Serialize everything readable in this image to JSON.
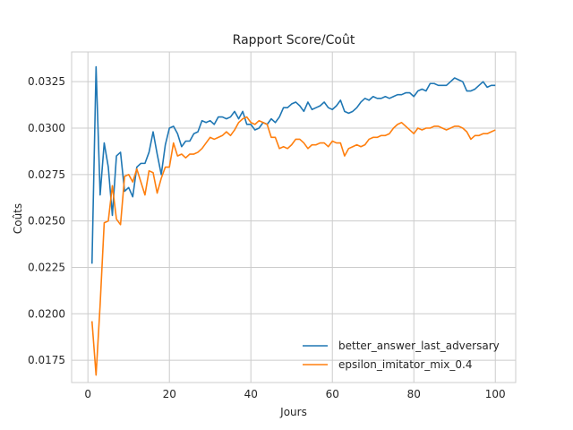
{
  "chart_data": {
    "type": "line",
    "title": "Rapport Score/Coût",
    "xlabel": "Jours",
    "ylabel": "Coûts",
    "xlim": [
      -4,
      105
    ],
    "ylim": [
      0.0163,
      0.0341
    ],
    "xticks": [
      0,
      20,
      40,
      60,
      80,
      100
    ],
    "yticks": [
      0.0175,
      0.02,
      0.0225,
      0.025,
      0.0275,
      0.03,
      0.0325
    ],
    "ytick_labels": [
      "0.0175",
      "0.0200",
      "0.0225",
      "0.0250",
      "0.0275",
      "0.0300",
      "0.0325"
    ],
    "grid": true,
    "legend_position": "lower-right",
    "x": [
      1,
      2,
      3,
      4,
      5,
      6,
      7,
      8,
      9,
      10,
      11,
      12,
      13,
      14,
      15,
      16,
      17,
      18,
      19,
      20,
      21,
      22,
      23,
      24,
      25,
      26,
      27,
      28,
      29,
      30,
      31,
      32,
      33,
      34,
      35,
      36,
      37,
      38,
      39,
      40,
      41,
      42,
      43,
      44,
      45,
      46,
      47,
      48,
      49,
      50,
      51,
      52,
      53,
      54,
      55,
      56,
      57,
      58,
      59,
      60,
      61,
      62,
      63,
      64,
      65,
      66,
      67,
      68,
      69,
      70,
      71,
      72,
      73,
      74,
      75,
      76,
      77,
      78,
      79,
      80,
      81,
      82,
      83,
      84,
      85,
      86,
      87,
      88,
      89,
      90,
      91,
      92,
      93,
      94,
      95,
      96,
      97,
      98,
      99,
      100
    ],
    "series": [
      {
        "name": "better_answer_last_adversary",
        "color": "#1f77b4",
        "values": [
          0.0227,
          0.0333,
          0.0264,
          0.0292,
          0.0279,
          0.0253,
          0.0285,
          0.0287,
          0.0266,
          0.0268,
          0.0263,
          0.0279,
          0.0281,
          0.0281,
          0.0287,
          0.0298,
          0.0286,
          0.0275,
          0.0291,
          0.03,
          0.0301,
          0.0297,
          0.029,
          0.0293,
          0.0293,
          0.0297,
          0.0298,
          0.0304,
          0.0303,
          0.0304,
          0.0302,
          0.0306,
          0.0306,
          0.0305,
          0.0306,
          0.0309,
          0.0305,
          0.0309,
          0.0302,
          0.0302,
          0.0299,
          0.03,
          0.0303,
          0.0302,
          0.0305,
          0.0303,
          0.0306,
          0.0311,
          0.0311,
          0.0313,
          0.0314,
          0.0312,
          0.0309,
          0.0314,
          0.031,
          0.0311,
          0.0312,
          0.0314,
          0.0311,
          0.031,
          0.0312,
          0.0315,
          0.0309,
          0.0308,
          0.0309,
          0.0311,
          0.0314,
          0.0316,
          0.0315,
          0.0317,
          0.0316,
          0.0316,
          0.0317,
          0.0316,
          0.0317,
          0.0318,
          0.0318,
          0.0319,
          0.0319,
          0.0317,
          0.032,
          0.0321,
          0.032,
          0.0324,
          0.0324,
          0.0323,
          0.0323,
          0.0323,
          0.0325,
          0.0327,
          0.0326,
          0.0325,
          0.032,
          0.032,
          0.0321,
          0.0323,
          0.0325,
          0.0322,
          0.0323,
          0.0323
        ]
      },
      {
        "name": "epsilon_imitator_mix_0.4",
        "color": "#ff7f0e",
        "values": [
          0.0196,
          0.0167,
          0.0205,
          0.0249,
          0.025,
          0.0269,
          0.0251,
          0.0248,
          0.0274,
          0.0275,
          0.0271,
          0.0278,
          0.0271,
          0.0264,
          0.0277,
          0.0276,
          0.0265,
          0.0273,
          0.0279,
          0.0279,
          0.0292,
          0.0285,
          0.0286,
          0.0284,
          0.0286,
          0.0286,
          0.0287,
          0.0289,
          0.0292,
          0.0295,
          0.0294,
          0.0295,
          0.0296,
          0.0298,
          0.0296,
          0.0299,
          0.0303,
          0.0305,
          0.0306,
          0.0303,
          0.0302,
          0.0304,
          0.0303,
          0.0302,
          0.0295,
          0.0295,
          0.0289,
          0.029,
          0.0289,
          0.0291,
          0.0294,
          0.0294,
          0.0292,
          0.0289,
          0.0291,
          0.0291,
          0.0292,
          0.0292,
          0.029,
          0.0293,
          0.0292,
          0.0292,
          0.0285,
          0.0289,
          0.029,
          0.0291,
          0.029,
          0.0291,
          0.0294,
          0.0295,
          0.0295,
          0.0296,
          0.0296,
          0.0297,
          0.03,
          0.0302,
          0.0303,
          0.0301,
          0.0299,
          0.0297,
          0.03,
          0.0299,
          0.03,
          0.03,
          0.0301,
          0.0301,
          0.03,
          0.0299,
          0.03,
          0.0301,
          0.0301,
          0.03,
          0.0298,
          0.0294,
          0.0296,
          0.0296,
          0.0297,
          0.0297,
          0.0298,
          0.0299
        ]
      }
    ]
  }
}
